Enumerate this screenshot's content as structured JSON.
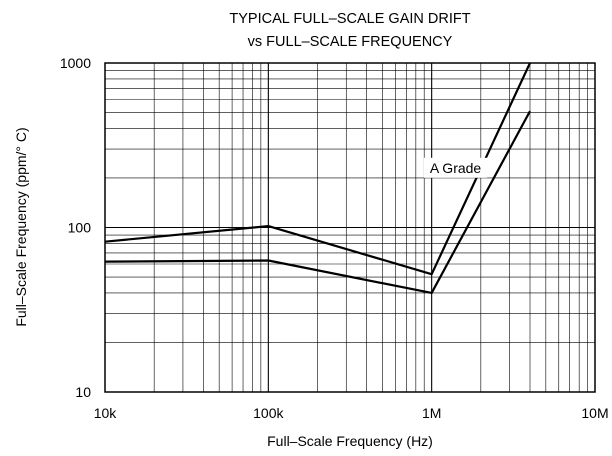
{
  "chart_data": {
    "type": "line",
    "title_line1": "TYPICAL FULL–SCALE GAIN DRIFT",
    "title_line2": "vs FULL–SCALE FREQUENCY",
    "xlabel": "Full–Scale Frequency (Hz)",
    "ylabel": "Full–Scale Frequency (ppm/° C)",
    "x_scale": "log",
    "y_scale": "log",
    "xlim": [
      10000,
      10000000
    ],
    "ylim": [
      10,
      1000
    ],
    "x_ticks": [
      {
        "value": 10000,
        "label": "10k"
      },
      {
        "value": 100000,
        "label": "100k"
      },
      {
        "value": 1000000,
        "label": "1M"
      },
      {
        "value": 10000000,
        "label": "10M"
      }
    ],
    "y_ticks": [
      {
        "value": 10,
        "label": "10"
      },
      {
        "value": 100,
        "label": "100"
      },
      {
        "value": 1000,
        "label": "1000"
      }
    ],
    "grid": true,
    "series": [
      {
        "x": [
          10000,
          100000,
          1000000,
          4000000
        ],
        "y": [
          82,
          102,
          52,
          1000
        ]
      },
      {
        "x": [
          10000,
          100000,
          1000000,
          4000000
        ],
        "y": [
          62,
          63,
          40,
          510
        ]
      }
    ],
    "annotations": [
      {
        "text": "A Grade",
        "x": 1400000,
        "y": 215
      }
    ]
  }
}
